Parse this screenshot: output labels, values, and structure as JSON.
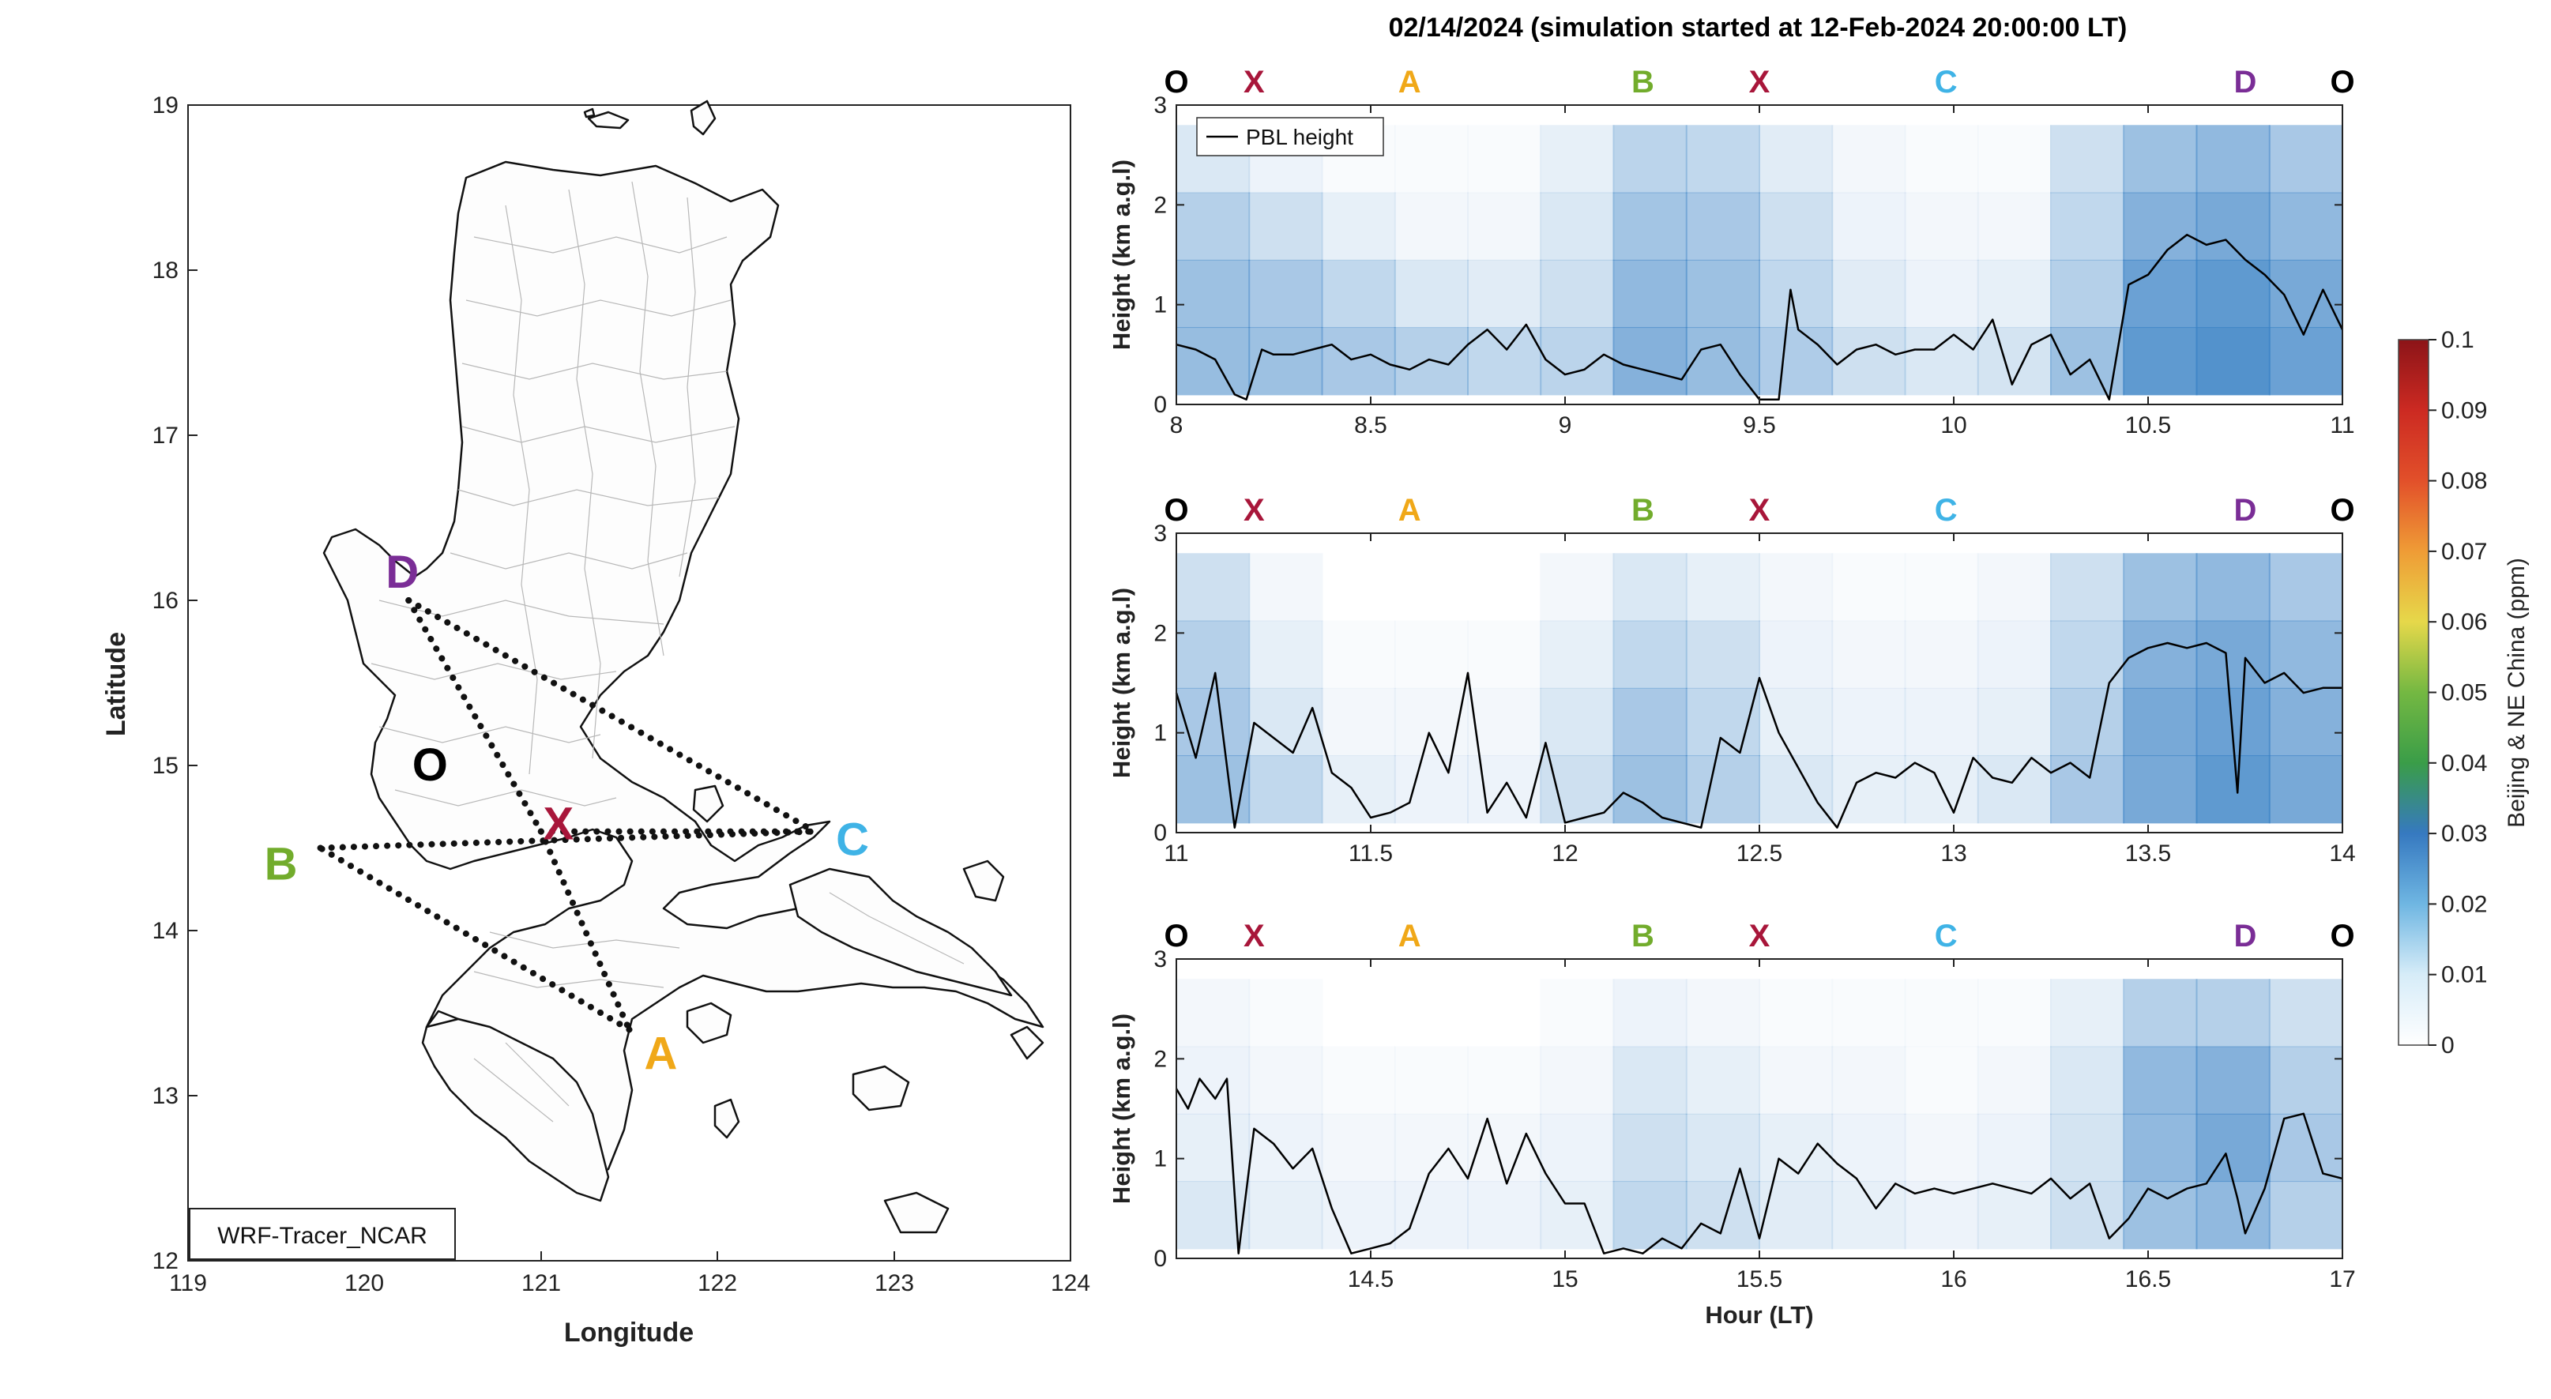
{
  "figure": {
    "title": "02/14/2024 (simulation started at 12-Feb-2024 20:00:00 LT)"
  },
  "colors": {
    "O": "#000000",
    "X": "#a8163a",
    "A": "#f0a818",
    "B": "#72ac2c",
    "C": "#3fb3e6",
    "D": "#7a2d96",
    "pbl_line": "#000000",
    "concentration_base": "#3d84c6"
  },
  "map": {
    "xlabel": "Longitude",
    "ylabel": "Latitude",
    "xlim": [
      119,
      124
    ],
    "ylim": [
      12,
      19
    ],
    "xticks": [
      "119",
      "120",
      "121",
      "122",
      "123",
      "124"
    ],
    "yticks": [
      "12",
      "13",
      "14",
      "15",
      "16",
      "17",
      "18",
      "19"
    ],
    "annotation": "WRF-Tracer_NCAR",
    "route_points": [
      {
        "label": "O",
        "lon": 120.55,
        "lat": 15.1
      },
      {
        "label": "X",
        "lon": 121.0,
        "lat": 14.6
      },
      {
        "label": "A",
        "lon": 121.5,
        "lat": 13.4
      },
      {
        "label": "B",
        "lon": 119.75,
        "lat": 14.5
      },
      {
        "label": "C",
        "lon": 122.55,
        "lat": 14.6
      },
      {
        "label": "D",
        "lon": 120.25,
        "lat": 16.0
      }
    ],
    "route_segments": [
      [
        "D",
        "C"
      ],
      [
        "D",
        "X"
      ],
      [
        "X",
        "A"
      ],
      [
        "A",
        "B"
      ],
      [
        "B",
        "C"
      ],
      [
        "X",
        "C"
      ]
    ]
  },
  "colorbar": {
    "label": "Beijing & NE China (ppm)",
    "ticks": [
      "0",
      "0.01",
      "0.02",
      "0.03",
      "0.04",
      "0.05",
      "0.06",
      "0.07",
      "0.08",
      "0.09",
      "0.1"
    ],
    "range": [
      0,
      0.1
    ]
  },
  "chart_data": [
    {
      "type": "heatmap",
      "ylabel": "Height (km a.g.l)",
      "xlim": [
        8,
        11
      ],
      "ylim": [
        0,
        3
      ],
      "xticks": [
        "8",
        "8.5",
        "9",
        "9.5",
        "10",
        "10.5",
        "11"
      ],
      "yticks": [
        "0",
        "1",
        "2",
        "3"
      ],
      "legend": "PBL height",
      "legend_position": "top-left",
      "waypoints": [
        {
          "label": "O",
          "x": 8
        },
        {
          "label": "X",
          "x": 8.2
        },
        {
          "label": "A",
          "x": 8.6
        },
        {
          "label": "B",
          "x": 9.2
        },
        {
          "label": "X",
          "x": 9.5
        },
        {
          "label": "C",
          "x": 9.98
        },
        {
          "label": "D",
          "x": 10.75
        },
        {
          "label": "O",
          "x": 11
        }
      ],
      "pbl_height": {
        "x": [
          8.0,
          8.05,
          8.1,
          8.15,
          8.18,
          8.22,
          8.25,
          8.3,
          8.35,
          8.4,
          8.45,
          8.5,
          8.55,
          8.6,
          8.65,
          8.7,
          8.75,
          8.8,
          8.85,
          8.9,
          8.95,
          9.0,
          9.05,
          9.1,
          9.15,
          9.2,
          9.25,
          9.3,
          9.35,
          9.4,
          9.45,
          9.5,
          9.55,
          9.58,
          9.6,
          9.65,
          9.7,
          9.75,
          9.8,
          9.85,
          9.9,
          9.95,
          10.0,
          10.05,
          10.1,
          10.15,
          10.2,
          10.25,
          10.3,
          10.35,
          10.4,
          10.45,
          10.5,
          10.55,
          10.6,
          10.65,
          10.7,
          10.75,
          10.8,
          10.85,
          10.9,
          10.95,
          11.0
        ],
        "y": [
          0.6,
          0.55,
          0.45,
          0.1,
          0.05,
          0.55,
          0.5,
          0.5,
          0.55,
          0.6,
          0.45,
          0.5,
          0.4,
          0.35,
          0.45,
          0.4,
          0.6,
          0.75,
          0.55,
          0.8,
          0.45,
          0.3,
          0.35,
          0.5,
          0.4,
          0.35,
          0.3,
          0.25,
          0.55,
          0.6,
          0.3,
          0.05,
          0.05,
          1.15,
          0.75,
          0.6,
          0.4,
          0.55,
          0.6,
          0.5,
          0.55,
          0.55,
          0.7,
          0.55,
          0.85,
          0.2,
          0.6,
          0.7,
          0.3,
          0.45,
          0.05,
          1.2,
          1.3,
          1.55,
          1.7,
          1.6,
          1.65,
          1.45,
          1.3,
          1.1,
          0.7,
          1.15,
          0.75
        ]
      },
      "concentration_ppm": {
        "x": [
          8.0,
          8.2,
          8.4,
          8.6,
          8.8,
          9.0,
          9.2,
          9.4,
          9.6,
          9.8,
          10.0,
          10.2,
          10.4,
          10.6,
          10.8,
          11.0
        ],
        "columns": [
          [
            0.017,
            0.016,
            0.012,
            0.006
          ],
          [
            0.016,
            0.014,
            0.008,
            0.003
          ],
          [
            0.014,
            0.01,
            0.004,
            0.001
          ],
          [
            0.012,
            0.006,
            0.002,
            0.001
          ],
          [
            0.01,
            0.005,
            0.002,
            0.001
          ],
          [
            0.011,
            0.008,
            0.006,
            0.004
          ],
          [
            0.02,
            0.018,
            0.015,
            0.011
          ],
          [
            0.017,
            0.016,
            0.014,
            0.01
          ],
          [
            0.013,
            0.01,
            0.008,
            0.005
          ],
          [
            0.008,
            0.005,
            0.003,
            0.002
          ],
          [
            0.006,
            0.003,
            0.002,
            0.001
          ],
          [
            0.007,
            0.004,
            0.002,
            0.001
          ],
          [
            0.016,
            0.012,
            0.01,
            0.008
          ],
          [
            0.026,
            0.024,
            0.02,
            0.016
          ],
          [
            0.028,
            0.026,
            0.022,
            0.018
          ],
          [
            0.024,
            0.022,
            0.018,
            0.014
          ]
        ]
      }
    },
    {
      "type": "heatmap",
      "ylabel": "Height (km a.g.l)",
      "xlim": [
        11,
        14
      ],
      "ylim": [
        0,
        3
      ],
      "xticks": [
        "11",
        "11.5",
        "12",
        "12.5",
        "13",
        "13.5",
        "14"
      ],
      "yticks": [
        "0",
        "1",
        "2",
        "3"
      ],
      "waypoints": [
        {
          "label": "O",
          "x": 11
        },
        {
          "label": "X",
          "x": 11.2
        },
        {
          "label": "A",
          "x": 11.6
        },
        {
          "label": "B",
          "x": 12.2
        },
        {
          "label": "X",
          "x": 12.5
        },
        {
          "label": "C",
          "x": 12.98
        },
        {
          "label": "D",
          "x": 13.75
        },
        {
          "label": "O",
          "x": 14
        }
      ],
      "pbl_height": {
        "x": [
          11.0,
          11.05,
          11.1,
          11.15,
          11.2,
          11.25,
          11.3,
          11.35,
          11.4,
          11.45,
          11.5,
          11.55,
          11.6,
          11.65,
          11.7,
          11.75,
          11.8,
          11.85,
          11.9,
          11.95,
          12.0,
          12.05,
          12.1,
          12.15,
          12.2,
          12.25,
          12.3,
          12.35,
          12.4,
          12.45,
          12.5,
          12.55,
          12.6,
          12.65,
          12.7,
          12.75,
          12.8,
          12.85,
          12.9,
          12.95,
          13.0,
          13.05,
          13.1,
          13.15,
          13.2,
          13.25,
          13.3,
          13.35,
          13.4,
          13.45,
          13.5,
          13.55,
          13.6,
          13.65,
          13.7,
          13.73,
          13.75,
          13.8,
          13.85,
          13.9,
          13.95,
          14.0
        ],
        "y": [
          1.4,
          0.75,
          1.6,
          0.05,
          1.1,
          0.95,
          0.8,
          1.25,
          0.6,
          0.45,
          0.15,
          0.2,
          0.3,
          1.0,
          0.6,
          1.6,
          0.2,
          0.5,
          0.15,
          0.9,
          0.1,
          0.15,
          0.2,
          0.4,
          0.3,
          0.15,
          0.1,
          0.05,
          0.95,
          0.8,
          1.55,
          1.0,
          0.65,
          0.3,
          0.05,
          0.5,
          0.6,
          0.55,
          0.7,
          0.6,
          0.2,
          0.75,
          0.55,
          0.5,
          0.75,
          0.6,
          0.7,
          0.55,
          1.5,
          1.75,
          1.85,
          1.9,
          1.85,
          1.9,
          1.8,
          0.4,
          1.75,
          1.5,
          1.6,
          1.4,
          1.45,
          1.45
        ]
      },
      "concentration_ppm": {
        "x": [
          11.0,
          11.2,
          11.4,
          11.6,
          11.8,
          12.0,
          12.2,
          12.4,
          12.6,
          12.8,
          13.0,
          13.2,
          13.4,
          13.6,
          13.8,
          14.0
        ],
        "columns": [
          [
            0.016,
            0.014,
            0.012,
            0.008
          ],
          [
            0.01,
            0.006,
            0.004,
            0.002
          ],
          [
            0.004,
            0.002,
            0.001,
            0.0
          ],
          [
            0.003,
            0.002,
            0.001,
            0.0
          ],
          [
            0.003,
            0.002,
            0.001,
            0.0
          ],
          [
            0.008,
            0.006,
            0.004,
            0.002
          ],
          [
            0.016,
            0.014,
            0.01,
            0.006
          ],
          [
            0.012,
            0.01,
            0.008,
            0.004
          ],
          [
            0.006,
            0.004,
            0.003,
            0.002
          ],
          [
            0.004,
            0.003,
            0.002,
            0.001
          ],
          [
            0.004,
            0.003,
            0.002,
            0.001
          ],
          [
            0.006,
            0.004,
            0.003,
            0.002
          ],
          [
            0.014,
            0.012,
            0.01,
            0.008
          ],
          [
            0.022,
            0.022,
            0.02,
            0.016
          ],
          [
            0.026,
            0.024,
            0.022,
            0.018
          ],
          [
            0.022,
            0.02,
            0.018,
            0.014
          ]
        ]
      }
    },
    {
      "type": "heatmap",
      "ylabel": "Height (km a.g.l)",
      "xlabel": "Hour (LT)",
      "xlim": [
        14,
        17
      ],
      "ylim": [
        0,
        3
      ],
      "xticks": [
        "14.5",
        "15",
        "15.5",
        "16",
        "16.5",
        "17"
      ],
      "yticks": [
        "0",
        "1",
        "2",
        "3"
      ],
      "waypoints": [
        {
          "label": "O",
          "x": 14
        },
        {
          "label": "X",
          "x": 14.2
        },
        {
          "label": "A",
          "x": 14.6
        },
        {
          "label": "B",
          "x": 15.2
        },
        {
          "label": "X",
          "x": 15.5
        },
        {
          "label": "C",
          "x": 15.98
        },
        {
          "label": "D",
          "x": 16.75
        },
        {
          "label": "O",
          "x": 17
        }
      ],
      "pbl_height": {
        "x": [
          14.0,
          14.03,
          14.06,
          14.1,
          14.13,
          14.16,
          14.2,
          14.25,
          14.3,
          14.35,
          14.4,
          14.45,
          14.5,
          14.55,
          14.6,
          14.65,
          14.7,
          14.75,
          14.8,
          14.85,
          14.9,
          14.95,
          15.0,
          15.05,
          15.1,
          15.15,
          15.2,
          15.25,
          15.3,
          15.35,
          15.4,
          15.45,
          15.5,
          15.55,
          15.6,
          15.65,
          15.7,
          15.75,
          15.8,
          15.85,
          15.9,
          15.95,
          16.0,
          16.05,
          16.1,
          16.15,
          16.2,
          16.25,
          16.3,
          16.35,
          16.4,
          16.45,
          16.5,
          16.55,
          16.6,
          16.65,
          16.7,
          16.73,
          16.75,
          16.8,
          16.85,
          16.9,
          16.95,
          17.0
        ],
        "y": [
          1.7,
          1.5,
          1.8,
          1.6,
          1.8,
          0.05,
          1.3,
          1.15,
          0.9,
          1.1,
          0.5,
          0.05,
          0.1,
          0.15,
          0.3,
          0.85,
          1.1,
          0.8,
          1.4,
          0.75,
          1.25,
          0.85,
          0.55,
          0.55,
          0.05,
          0.1,
          0.05,
          0.2,
          0.1,
          0.35,
          0.25,
          0.9,
          0.2,
          1.0,
          0.85,
          1.15,
          0.95,
          0.8,
          0.5,
          0.75,
          0.65,
          0.7,
          0.65,
          0.7,
          0.75,
          0.7,
          0.65,
          0.8,
          0.6,
          0.75,
          0.2,
          0.4,
          0.7,
          0.6,
          0.7,
          0.75,
          1.05,
          0.6,
          0.25,
          0.7,
          1.4,
          1.45,
          0.85,
          0.8
        ]
      },
      "concentration_ppm": {
        "x": [
          14.0,
          14.2,
          14.4,
          14.6,
          14.8,
          15.0,
          15.2,
          15.4,
          15.6,
          15.8,
          16.0,
          16.2,
          16.4,
          16.6,
          16.8,
          17.0
        ],
        "columns": [
          [
            0.006,
            0.004,
            0.003,
            0.002
          ],
          [
            0.004,
            0.003,
            0.002,
            0.001
          ],
          [
            0.003,
            0.002,
            0.001,
            0.0
          ],
          [
            0.003,
            0.002,
            0.001,
            0.0
          ],
          [
            0.003,
            0.002,
            0.001,
            0.0
          ],
          [
            0.004,
            0.003,
            0.002,
            0.001
          ],
          [
            0.01,
            0.008,
            0.006,
            0.003
          ],
          [
            0.008,
            0.006,
            0.004,
            0.002
          ],
          [
            0.005,
            0.004,
            0.002,
            0.001
          ],
          [
            0.004,
            0.003,
            0.002,
            0.001
          ],
          [
            0.003,
            0.002,
            0.001,
            0.001
          ],
          [
            0.004,
            0.003,
            0.002,
            0.001
          ],
          [
            0.008,
            0.007,
            0.006,
            0.004
          ],
          [
            0.016,
            0.018,
            0.018,
            0.012
          ],
          [
            0.018,
            0.022,
            0.02,
            0.012
          ],
          [
            0.012,
            0.014,
            0.012,
            0.008
          ]
        ]
      }
    }
  ]
}
